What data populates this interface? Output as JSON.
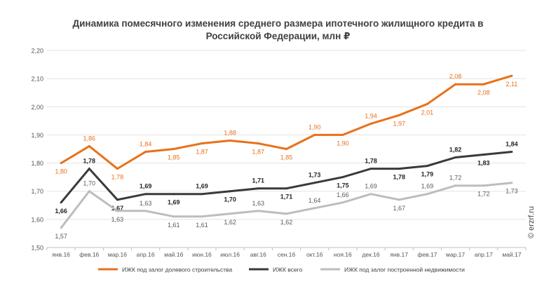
{
  "title_line1": "Динамика помесячного изменения среднего размера ипотечного жилищного кредита в",
  "title_line2": "Российской Федерации, млн ₽",
  "watermark": "© erzrf.ru",
  "chart_data": {
    "type": "line",
    "title": "Динамика помесячного изменения среднего размера ипотечного жилищного кредита в Российской Федерации, млн ₽",
    "xlabel": "",
    "ylabel": "",
    "ylim": [
      1.5,
      2.2
    ],
    "yticks": [
      "1,50",
      "1,60",
      "1,70",
      "1,80",
      "1,90",
      "2,00",
      "2,10",
      "2,20"
    ],
    "grid": true,
    "legend_position": "bottom",
    "categories": [
      "янв.16",
      "фев.16",
      "мар.16",
      "апр.16",
      "май.16",
      "июн.16",
      "июл.16",
      "авг.16",
      "сен.16",
      "окт.16",
      "ноя.16",
      "дек.16",
      "янв.17",
      "фев.17",
      "мар.17",
      "апр.17",
      "май.17"
    ],
    "series": [
      {
        "name": "ИЖК под залог долевого строительства",
        "color": "#E8711A",
        "label_pos": [
          "below",
          "above",
          "below",
          "above",
          "below",
          "below",
          "above",
          "below",
          "below",
          "above",
          "below",
          "above",
          "below",
          "below",
          "above",
          "below",
          "below"
        ],
        "values": [
          1.8,
          1.86,
          1.78,
          1.84,
          1.85,
          1.87,
          1.88,
          1.87,
          1.85,
          1.9,
          1.9,
          1.94,
          1.97,
          2.01,
          2.08,
          2.08,
          2.11
        ],
        "labels": [
          "1,80",
          "1,86",
          "1,78",
          "1,84",
          "1,85",
          "1,87",
          "1,88",
          "1,87",
          "1,85",
          "1,90",
          "1,90",
          "1,94",
          "1,97",
          "2,01",
          "2,08",
          "2,08",
          "2,11"
        ]
      },
      {
        "name": "ИЖК всего",
        "color": "#3A3A3A",
        "label_pos": [
          "below",
          "above",
          "below",
          "above",
          "below",
          "above",
          "below",
          "above",
          "below",
          "above",
          "below",
          "above",
          "below",
          "below",
          "above",
          "below",
          "above"
        ],
        "values": [
          1.66,
          1.78,
          1.67,
          1.69,
          1.69,
          1.69,
          1.7,
          1.71,
          1.71,
          1.73,
          1.75,
          1.78,
          1.78,
          1.79,
          1.82,
          1.83,
          1.84
        ],
        "labels": [
          "1,66",
          "1,78",
          "1,67",
          "1,69",
          "1,69",
          "1,69",
          "1,70",
          "1,71",
          "1,71",
          "1,73",
          "1,75",
          "1,78",
          "1,78",
          "1,79",
          "1,82",
          "1,83",
          "1,84"
        ]
      },
      {
        "name": "ИЖК под залог построенной недвижимости",
        "color": "#BDBDBD",
        "label_pos": [
          "below",
          "above",
          "below",
          "above",
          "below",
          "below",
          "below",
          "above",
          "below",
          "above",
          "above",
          "above",
          "below",
          "above",
          "above",
          "below",
          "below"
        ],
        "values": [
          1.57,
          1.7,
          1.63,
          1.63,
          1.61,
          1.61,
          1.62,
          1.63,
          1.62,
          1.64,
          1.66,
          1.69,
          1.67,
          1.69,
          1.72,
          1.72,
          1.73
        ],
        "labels": [
          "1,57",
          "1,70",
          "1,63",
          "1,63",
          "1,61",
          "1,61",
          "1,62",
          "1,63",
          "1,62",
          "1,64",
          "1,66",
          "1,69",
          "1,67",
          "1,69",
          "1,72",
          "1,72",
          "1,73"
        ]
      }
    ]
  }
}
